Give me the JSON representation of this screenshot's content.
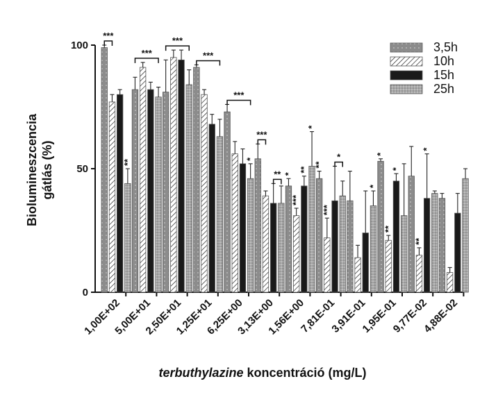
{
  "chart_data": {
    "type": "bar",
    "title": "",
    "ylabel_line1": "Biolumineszcencia",
    "ylabel_line2": "gátlás (%)",
    "xlabel_italic": "terbuthylazine",
    "xlabel_rest": " koncentráció (mg/L)",
    "ylim": [
      0,
      100
    ],
    "yticks": [
      "0",
      "50",
      "100"
    ],
    "categories": [
      "1,00E+02",
      "5,00E+01",
      "2,50E+01",
      "1,25E+01",
      "6,25E+00",
      "3,13E+00",
      "1,56E+00",
      "7,81E-01",
      "3,91E-01",
      "1,95E-01",
      "9,77E-02",
      "4,88E-02"
    ],
    "legend_position": "top-right",
    "series": [
      {
        "name": "3,5h",
        "color": "#8c8c8c",
        "pattern": "grid",
        "values": [
          99,
          82,
          81,
          91,
          73,
          54,
          43,
          46,
          37,
          53,
          47,
          38
        ],
        "errors": [
          1,
          5,
          13,
          1,
          3,
          6,
          3,
          3,
          12,
          1,
          12,
          2
        ],
        "stars": [
          "",
          "",
          "",
          "",
          "",
          "",
          "*",
          "**",
          "",
          "*",
          "",
          ""
        ]
      },
      {
        "name": "10h",
        "color": "#ffffff",
        "pattern": "hatch",
        "values": [
          77,
          91,
          95,
          80,
          56,
          39,
          31,
          22,
          14,
          21,
          15,
          8
        ],
        "errors": [
          3,
          2,
          3,
          2,
          5,
          2,
          3,
          8,
          5,
          2,
          3,
          2
        ],
        "stars": [
          "",
          "",
          "",
          "",
          "",
          "",
          "***",
          "***",
          "",
          "**",
          "**",
          ""
        ]
      },
      {
        "name": "15h",
        "color": "#1a1a1a",
        "pattern": "solid",
        "values": [
          80,
          82,
          94,
          68,
          52,
          36,
          43,
          37,
          24,
          45,
          38,
          32
        ],
        "errors": [
          2,
          3,
          4,
          4,
          6,
          8,
          4,
          14,
          17,
          3,
          18,
          8
        ],
        "stars": [
          "",
          "",
          "",
          "",
          "",
          "",
          "**",
          "",
          "",
          "*",
          "*",
          ""
        ]
      },
      {
        "name": "25h",
        "color": "#b5b5b5",
        "pattern": "dots",
        "values": [
          44,
          79,
          84,
          63,
          46,
          36,
          51,
          39,
          35,
          31,
          40,
          46
        ],
        "errors": [
          6,
          4,
          6,
          7,
          6,
          7,
          14,
          6,
          6,
          21,
          1,
          4
        ],
        "stars": [
          "**",
          "",
          "",
          "",
          "*",
          "",
          "*",
          "",
          "*",
          "",
          "",
          ""
        ]
      }
    ],
    "brackets": [
      {
        "group": 0,
        "from": 0,
        "to": 1,
        "label": "***"
      },
      {
        "group": 1,
        "from": 0,
        "to": 3,
        "label": "***"
      },
      {
        "group": 2,
        "from": 0,
        "to": 3,
        "label": "***"
      },
      {
        "group": 3,
        "from": 0,
        "to": 3,
        "label": "***"
      },
      {
        "group": 4,
        "from": 0,
        "to": 3,
        "label": "***"
      },
      {
        "group": 5,
        "from": 0,
        "to": 1,
        "label": "***"
      },
      {
        "group": 5,
        "from": 2,
        "to": 3,
        "label": "**"
      },
      {
        "group": 7,
        "from": 2,
        "to": 3,
        "label": "*"
      }
    ]
  }
}
